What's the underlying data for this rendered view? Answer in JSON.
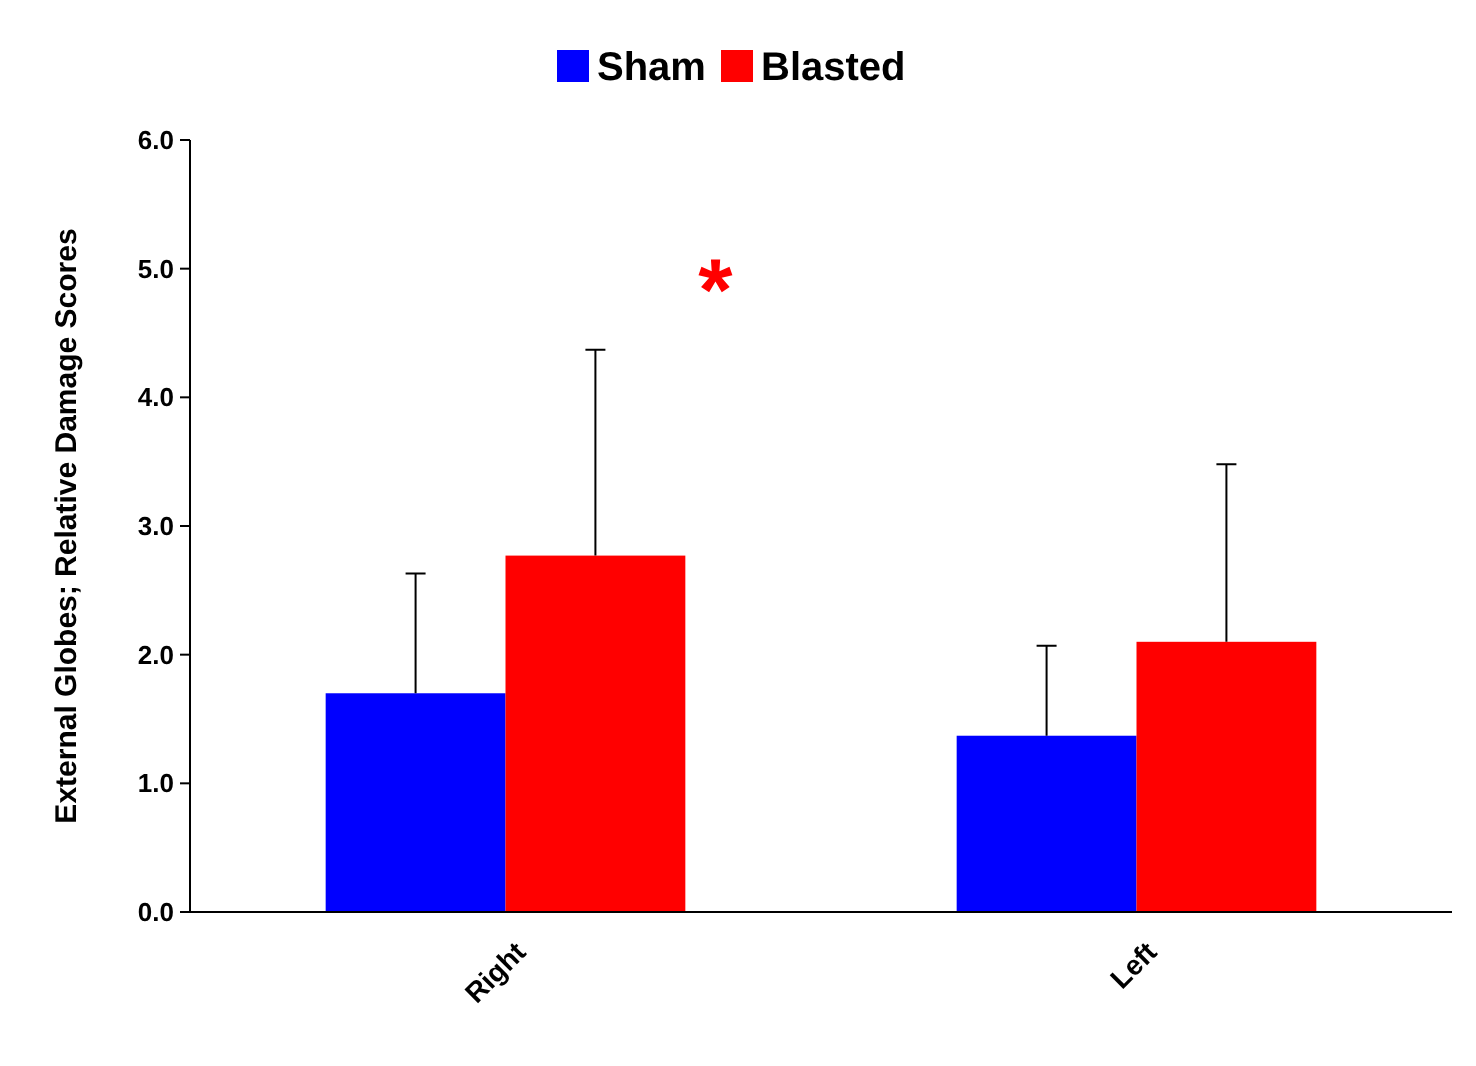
{
  "chart_data": {
    "type": "bar",
    "ylabel": "External Globes; Relative Damage Scores",
    "categories": [
      "Right",
      "Left"
    ],
    "series": [
      {
        "name": "Sham",
        "color": "#0000ff",
        "values": [
          1.7,
          1.37
        ],
        "errors": [
          [
            1.7,
            2.63
          ],
          [
            1.37,
            2.07
          ]
        ]
      },
      {
        "name": "Blasted",
        "color": "#ff0000",
        "values": [
          2.77,
          2.1
        ],
        "errors": [
          [
            2.77,
            4.37
          ],
          [
            2.1,
            3.48
          ]
        ]
      }
    ],
    "ylim": [
      0,
      6
    ],
    "yticks": [
      {
        "value": 0,
        "label": "0.0"
      },
      {
        "value": 1,
        "label": "1.0"
      },
      {
        "value": 2,
        "label": "2.0"
      },
      {
        "value": 3,
        "label": "3.0"
      },
      {
        "value": 4,
        "label": "4.0"
      },
      {
        "value": 5,
        "label": "5.0"
      },
      {
        "value": 6,
        "label": "6.0"
      }
    ],
    "annotations": [
      "*"
    ],
    "legend": "top",
    "grid": false
  }
}
